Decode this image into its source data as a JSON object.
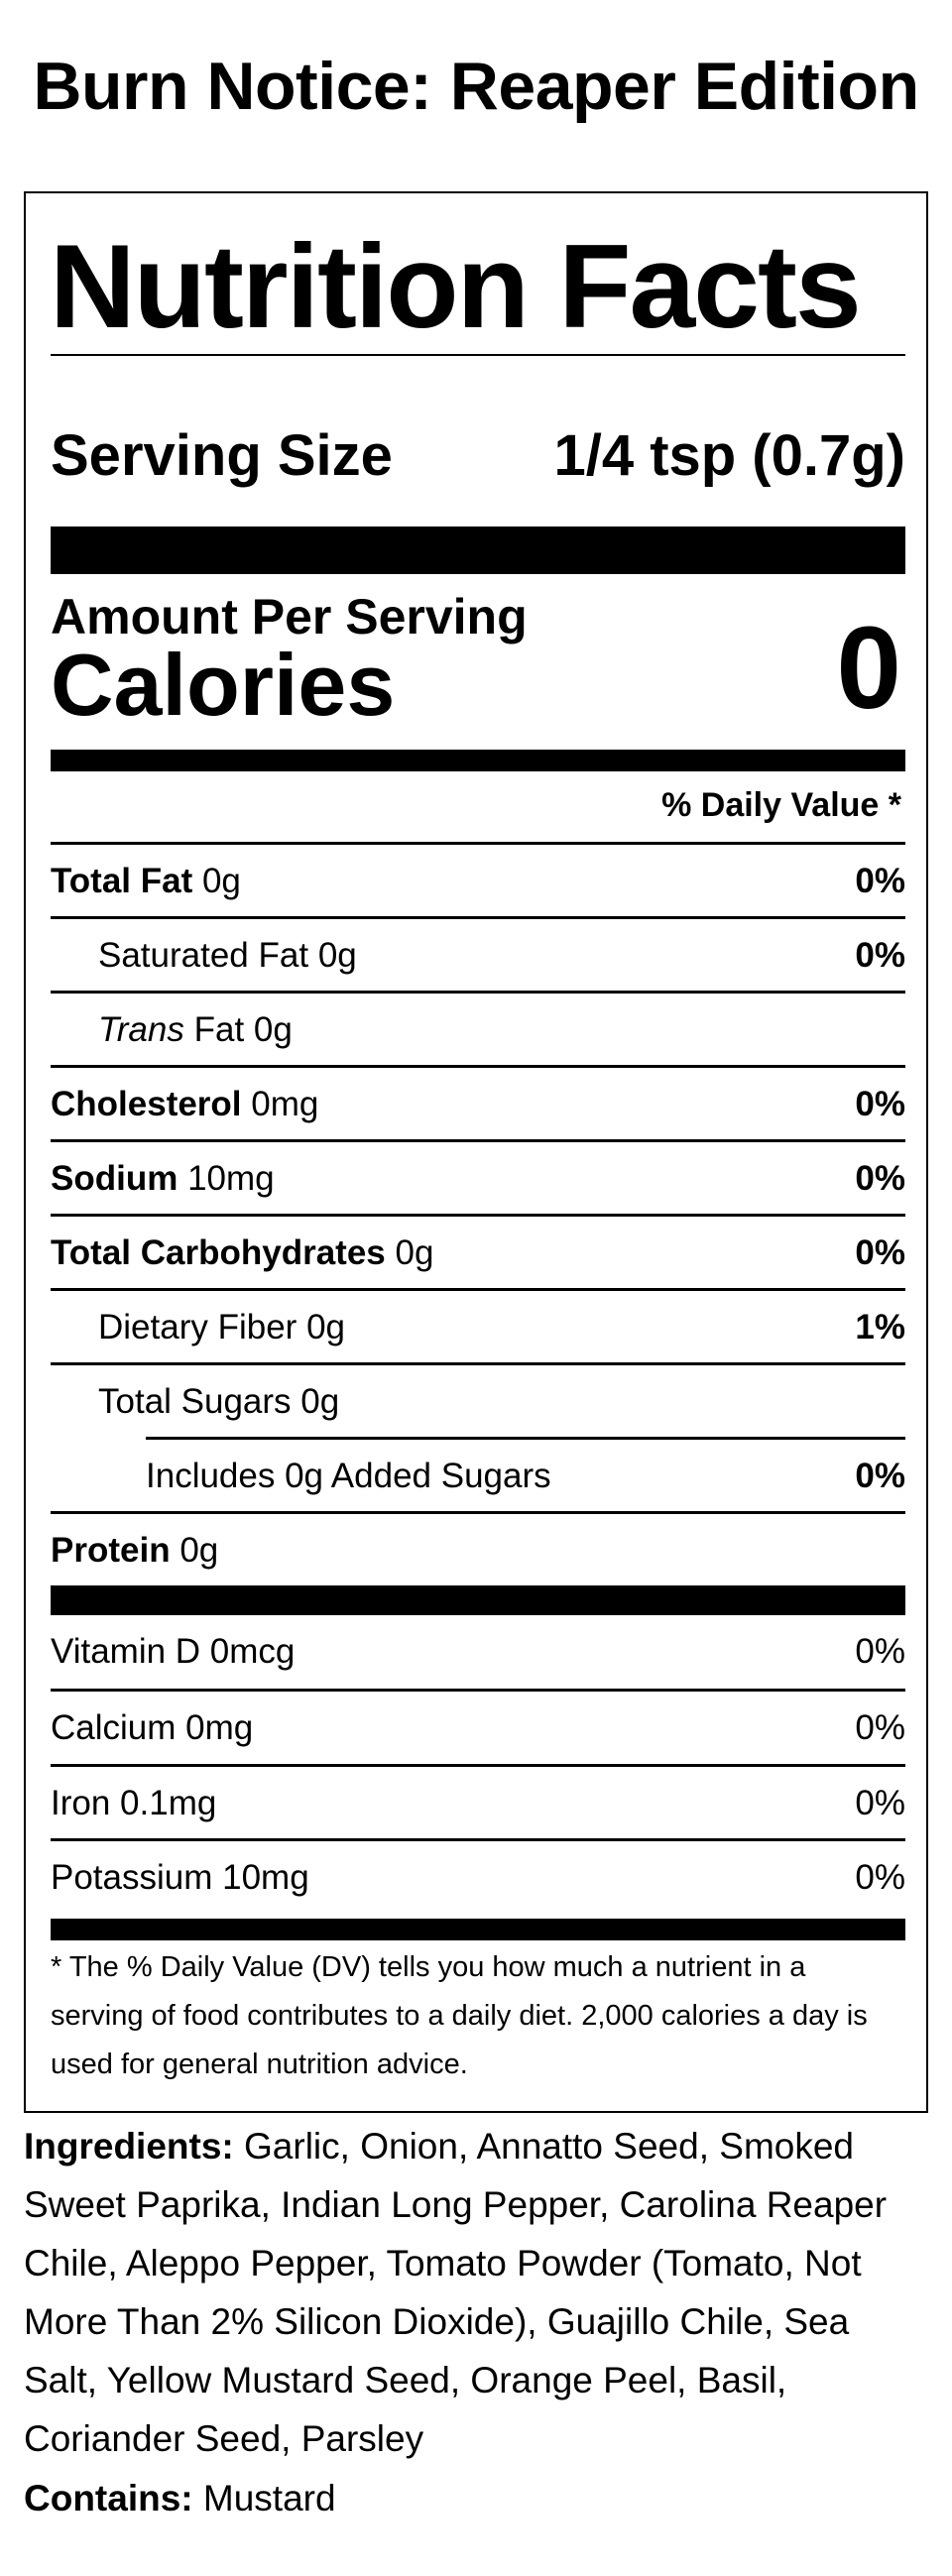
{
  "product_title": "Burn Notice: Reaper Edition",
  "label": {
    "heading": "Nutrition Facts",
    "serving_size_label": "Serving Size",
    "serving_size_value": "1/4 tsp (0.7g)",
    "amount_per_serving": "Amount Per Serving",
    "calories_label": "Calories",
    "calories_value": "0",
    "daily_value_header": "% Daily Value *",
    "nutrients": [
      {
        "name": "Total Fat",
        "amount": "0g",
        "dv": "0%"
      },
      {
        "name": "Saturated Fat",
        "amount": "0g",
        "dv": "0%"
      },
      {
        "name": "Trans",
        "rest": "Fat 0g",
        "dv": ""
      },
      {
        "name": "Cholesterol",
        "amount": "0mg",
        "dv": "0%"
      },
      {
        "name": "Sodium",
        "amount": "10mg",
        "dv": "0%"
      },
      {
        "name": "Total Carbohydrates",
        "amount": "0g",
        "dv": "0%"
      },
      {
        "name": "Dietary Fiber",
        "amount": "0g",
        "dv": "1%"
      },
      {
        "name": "Total Sugars",
        "amount": "0g",
        "dv": ""
      },
      {
        "name": "Includes 0g Added Sugars",
        "amount": "",
        "dv": "0%"
      },
      {
        "name": "Protein",
        "amount": "0g",
        "dv": ""
      }
    ],
    "vitamins": [
      {
        "name": "Vitamin D 0mcg",
        "dv": "0%"
      },
      {
        "name": "Calcium 0mg",
        "dv": "0%"
      },
      {
        "name": "Iron 0.1mg",
        "dv": "0%"
      },
      {
        "name": "Potassium 10mg",
        "dv": "0%"
      }
    ],
    "footnote": "* The % Daily Value (DV) tells you how much a nutrient in a serving of food contributes to a daily diet. 2,000 calories a day is used for general nutrition advice."
  },
  "ingredients": {
    "label": "Ingredients:",
    "text": "Garlic, Onion, Annatto Seed, Smoked Sweet Paprika, Indian Long Pepper, Carolina Reaper Chile, Aleppo Pepper, Tomato Powder (Tomato, Not More Than 2% Silicon Dioxide), Guajillo Chile, Sea Salt, Yellow Mustard Seed, Orange Peel, Basil, Coriander Seed, Parsley"
  },
  "contains": {
    "label": "Contains:",
    "text": "Mustard"
  }
}
